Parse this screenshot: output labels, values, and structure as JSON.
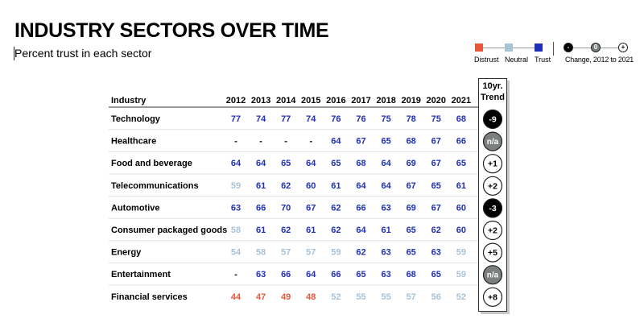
{
  "header": {
    "title": "INDUSTRY SECTORS OVER TIME",
    "subtitle": "Percent trust in each sector"
  },
  "legend": {
    "items": [
      {
        "label": "Distrust",
        "color": "#e8573a"
      },
      {
        "label": "Neutral",
        "color": "#a9c3d6"
      },
      {
        "label": "Trust",
        "color": "#1f2fb5"
      }
    ],
    "change_symbols": [
      "-",
      "0",
      "+"
    ],
    "change_label": "Change, 2012 to 2021"
  },
  "chart_data": {
    "type": "table",
    "title": "INDUSTRY SECTORS OVER TIME",
    "subtitle": "Percent trust in each sector",
    "row_header": "Industry",
    "columns": [
      "2012",
      "2013",
      "2014",
      "2015",
      "2016",
      "2017",
      "2018",
      "2019",
      "2020",
      "2021"
    ],
    "trend_header": [
      "10yr.",
      "Trend"
    ],
    "colors": {
      "trust": "#1f2fb5",
      "neutral": "#a9c3d6",
      "distrust": "#e8573a",
      "missing": "#000000",
      "trend_negative": "#000000",
      "trend_na": "#7b7f7e",
      "trend_positive": "#ffffff"
    },
    "rows": [
      {
        "industry": "Technology",
        "values": [
          "77",
          "74",
          "77",
          "74",
          "76",
          "76",
          "75",
          "78",
          "75",
          "68"
        ],
        "classes": [
          "t",
          "t",
          "t",
          "t",
          "t",
          "t",
          "t",
          "t",
          "t",
          "t"
        ],
        "trend": "-9",
        "trend_kind": "negative"
      },
      {
        "industry": "Healthcare",
        "values": [
          "-",
          "-",
          "-",
          "-",
          "64",
          "67",
          "65",
          "68",
          "67",
          "66"
        ],
        "classes": [
          "m",
          "m",
          "m",
          "m",
          "t",
          "t",
          "t",
          "t",
          "t",
          "t"
        ],
        "trend": "n/a",
        "trend_kind": "na"
      },
      {
        "industry": "Food and beverage",
        "values": [
          "64",
          "64",
          "65",
          "64",
          "65",
          "68",
          "64",
          "69",
          "67",
          "65"
        ],
        "classes": [
          "t",
          "t",
          "t",
          "t",
          "t",
          "t",
          "t",
          "t",
          "t",
          "t"
        ],
        "trend": "+1",
        "trend_kind": "positive"
      },
      {
        "industry": "Telecommunications",
        "values": [
          "59",
          "61",
          "62",
          "60",
          "61",
          "64",
          "64",
          "67",
          "65",
          "61"
        ],
        "classes": [
          "n",
          "t",
          "t",
          "t",
          "t",
          "t",
          "t",
          "t",
          "t",
          "t"
        ],
        "trend": "+2",
        "trend_kind": "positive"
      },
      {
        "industry": "Automotive",
        "values": [
          "63",
          "66",
          "70",
          "67",
          "62",
          "66",
          "63",
          "69",
          "67",
          "60"
        ],
        "classes": [
          "t",
          "t",
          "t",
          "t",
          "t",
          "t",
          "t",
          "t",
          "t",
          "t"
        ],
        "trend": "-3",
        "trend_kind": "negative"
      },
      {
        "industry": "Consumer packaged goods",
        "values": [
          "58",
          "61",
          "62",
          "61",
          "62",
          "64",
          "61",
          "65",
          "62",
          "60"
        ],
        "classes": [
          "n",
          "t",
          "t",
          "t",
          "t",
          "t",
          "t",
          "t",
          "t",
          "t"
        ],
        "trend": "+2",
        "trend_kind": "positive"
      },
      {
        "industry": "Energy",
        "values": [
          "54",
          "58",
          "57",
          "57",
          "59",
          "62",
          "63",
          "65",
          "63",
          "59"
        ],
        "classes": [
          "n",
          "n",
          "n",
          "n",
          "n",
          "t",
          "t",
          "t",
          "t",
          "n"
        ],
        "trend": "+5",
        "trend_kind": "positive"
      },
      {
        "industry": "Entertainment",
        "values": [
          "-",
          "63",
          "66",
          "64",
          "66",
          "65",
          "63",
          "68",
          "65",
          "59"
        ],
        "classes": [
          "m",
          "t",
          "t",
          "t",
          "t",
          "t",
          "t",
          "t",
          "t",
          "n"
        ],
        "trend": "n/a",
        "trend_kind": "na"
      },
      {
        "industry": "Financial services",
        "values": [
          "44",
          "47",
          "49",
          "48",
          "52",
          "55",
          "55",
          "57",
          "56",
          "52"
        ],
        "classes": [
          "d",
          "d",
          "d",
          "d",
          "n",
          "n",
          "n",
          "n",
          "n",
          "n"
        ],
        "trend": "+8",
        "trend_kind": "positive"
      }
    ]
  }
}
